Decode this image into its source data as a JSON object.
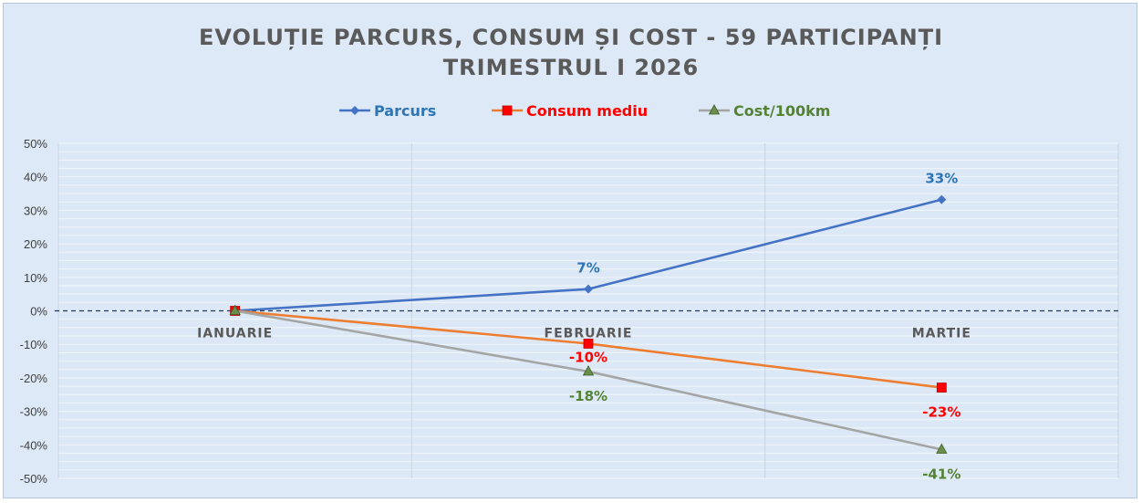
{
  "chart_data": {
    "type": "line",
    "title_lines": [
      "EVOLUȚIE PARCURS, CONSUM ȘI COST - 59 PARTICIPANȚI",
      "TRIMESTRUL I 2026"
    ],
    "categories": [
      "IANUARIE",
      "FEBRUARIE",
      "MARTIE"
    ],
    "ylim": [
      -0.5,
      0.5
    ],
    "y_ticks": [
      0.5,
      0.4,
      0.3,
      0.2,
      0.1,
      0,
      -0.1,
      -0.2,
      -0.3,
      -0.4,
      -0.5
    ],
    "y_tick_labels": [
      "50%",
      "40%",
      "30%",
      "20%",
      "10%",
      "0%",
      "-10%",
      "-20%",
      "-30%",
      "-40%",
      "-50%"
    ],
    "legend_position": "top-center",
    "series": [
      {
        "name": "Parcurs",
        "color": "#4472c4",
        "label_color": "#2e75b6",
        "marker": "diamond",
        "values": [
          0,
          0.065,
          0.332
        ],
        "labels": [
          "",
          "7%",
          "33%"
        ]
      },
      {
        "name": "Consum mediu",
        "color": "#ed7d31",
        "label_color": "#ff0000",
        "marker": "square",
        "values": [
          0,
          -0.098,
          -0.229
        ],
        "labels": [
          "",
          "-10%",
          "-23%"
        ]
      },
      {
        "name": "Cost/100km",
        "color": "#a5a5a5",
        "label_color": "#548235",
        "marker": "triangle",
        "values": [
          0,
          -0.181,
          -0.414
        ],
        "labels": [
          "",
          "-18%",
          "-41%"
        ]
      }
    ]
  }
}
